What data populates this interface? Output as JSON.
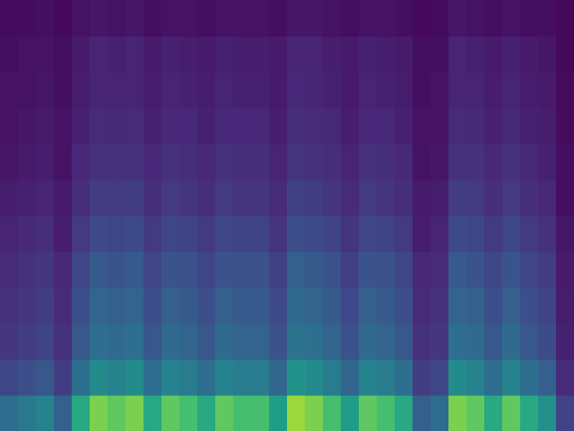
{
  "chart_data": {
    "type": "heatmap",
    "tick_labels": false,
    "xlim": [
      0,
      32
    ],
    "ylim": [
      0,
      12
    ],
    "zlim": [
      0,
      1
    ],
    "cells": [
      [
        0.35,
        0.4,
        0.45,
        0.3,
        0.6,
        0.8,
        0.75,
        0.8,
        0.6,
        0.75,
        0.7,
        0.6,
        0.75,
        0.7,
        0.7,
        0.55,
        0.85,
        0.8,
        0.7,
        0.55,
        0.75,
        0.7,
        0.6,
        0.3,
        0.35,
        0.8,
        0.75,
        0.6,
        0.75,
        0.6,
        0.5,
        0.2
      ],
      [
        0.21,
        0.24,
        0.27,
        0.18,
        0.36,
        0.48,
        0.45,
        0.48,
        0.36,
        0.45,
        0.42,
        0.36,
        0.45,
        0.42,
        0.42,
        0.33,
        0.51,
        0.48,
        0.42,
        0.33,
        0.45,
        0.42,
        0.36,
        0.18,
        0.21,
        0.48,
        0.45,
        0.36,
        0.45,
        0.36,
        0.3,
        0.12
      ],
      [
        0.16,
        0.18,
        0.2,
        0.14,
        0.27,
        0.36,
        0.34,
        0.36,
        0.27,
        0.34,
        0.32,
        0.27,
        0.34,
        0.32,
        0.32,
        0.25,
        0.38,
        0.36,
        0.32,
        0.25,
        0.34,
        0.32,
        0.27,
        0.14,
        0.16,
        0.36,
        0.34,
        0.27,
        0.34,
        0.27,
        0.23,
        0.09
      ],
      [
        0.14,
        0.16,
        0.18,
        0.12,
        0.24,
        0.32,
        0.3,
        0.32,
        0.24,
        0.3,
        0.28,
        0.24,
        0.3,
        0.28,
        0.28,
        0.22,
        0.34,
        0.32,
        0.28,
        0.22,
        0.3,
        0.28,
        0.24,
        0.12,
        0.14,
        0.32,
        0.3,
        0.24,
        0.3,
        0.24,
        0.2,
        0.08
      ],
      [
        0.12,
        0.14,
        0.16,
        0.11,
        0.21,
        0.28,
        0.26,
        0.28,
        0.21,
        0.26,
        0.25,
        0.21,
        0.26,
        0.25,
        0.25,
        0.19,
        0.3,
        0.28,
        0.25,
        0.19,
        0.26,
        0.25,
        0.21,
        0.11,
        0.12,
        0.28,
        0.26,
        0.21,
        0.26,
        0.21,
        0.18,
        0.07
      ],
      [
        0.1,
        0.11,
        0.13,
        0.08,
        0.17,
        0.22,
        0.21,
        0.22,
        0.17,
        0.21,
        0.2,
        0.17,
        0.21,
        0.2,
        0.2,
        0.15,
        0.24,
        0.22,
        0.2,
        0.15,
        0.21,
        0.2,
        0.17,
        0.08,
        0.1,
        0.22,
        0.21,
        0.17,
        0.21,
        0.17,
        0.14,
        0.06
      ],
      [
        0.08,
        0.09,
        0.1,
        0.07,
        0.13,
        0.18,
        0.17,
        0.18,
        0.13,
        0.17,
        0.15,
        0.13,
        0.17,
        0.15,
        0.15,
        0.12,
        0.19,
        0.18,
        0.15,
        0.12,
        0.17,
        0.15,
        0.13,
        0.07,
        0.08,
        0.18,
        0.17,
        0.13,
        0.17,
        0.13,
        0.11,
        0.04
      ],
      [
        0.06,
        0.07,
        0.08,
        0.05,
        0.11,
        0.14,
        0.14,
        0.14,
        0.11,
        0.14,
        0.13,
        0.11,
        0.14,
        0.13,
        0.13,
        0.1,
        0.15,
        0.14,
        0.13,
        0.1,
        0.14,
        0.13,
        0.11,
        0.05,
        0.06,
        0.14,
        0.14,
        0.11,
        0.14,
        0.11,
        0.09,
        0.04
      ],
      [
        0.05,
        0.06,
        0.07,
        0.05,
        0.09,
        0.12,
        0.11,
        0.12,
        0.09,
        0.11,
        0.11,
        0.09,
        0.11,
        0.11,
        0.11,
        0.08,
        0.13,
        0.12,
        0.11,
        0.08,
        0.11,
        0.11,
        0.09,
        0.05,
        0.05,
        0.12,
        0.11,
        0.09,
        0.11,
        0.09,
        0.08,
        0.03
      ],
      [
        0.05,
        0.05,
        0.06,
        0.04,
        0.08,
        0.1,
        0.1,
        0.1,
        0.08,
        0.1,
        0.09,
        0.08,
        0.1,
        0.09,
        0.09,
        0.07,
        0.11,
        0.1,
        0.09,
        0.07,
        0.1,
        0.09,
        0.08,
        0.04,
        0.05,
        0.1,
        0.1,
        0.08,
        0.1,
        0.08,
        0.07,
        0.03
      ],
      [
        0.04,
        0.05,
        0.05,
        0.04,
        0.07,
        0.1,
        0.09,
        0.1,
        0.07,
        0.09,
        0.08,
        0.07,
        0.09,
        0.08,
        0.08,
        0.07,
        0.1,
        0.1,
        0.08,
        0.07,
        0.09,
        0.08,
        0.07,
        0.04,
        0.04,
        0.1,
        0.09,
        0.07,
        0.09,
        0.07,
        0.06,
        0.02
      ],
      [
        0.03,
        0.03,
        0.04,
        0.02,
        0.05,
        0.06,
        0.05,
        0.06,
        0.04,
        0.05,
        0.05,
        0.04,
        0.05,
        0.05,
        0.05,
        0.04,
        0.06,
        0.06,
        0.05,
        0.04,
        0.05,
        0.05,
        0.04,
        0.02,
        0.03,
        0.06,
        0.05,
        0.04,
        0.05,
        0.04,
        0.04,
        0.02
      ]
    ]
  }
}
